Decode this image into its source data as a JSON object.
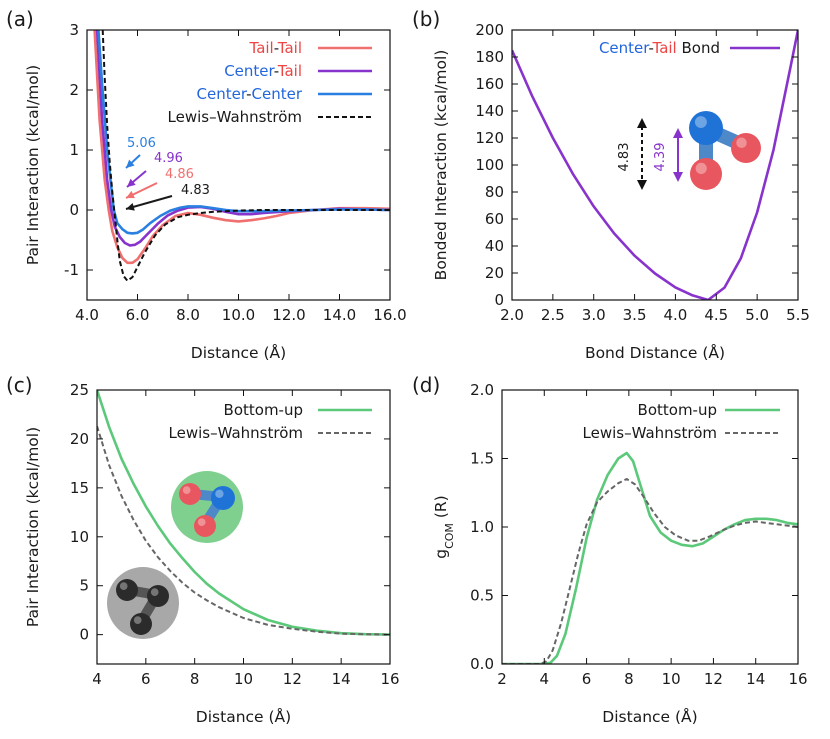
{
  "chart_data": [
    {
      "panel": "(a)",
      "type": "line",
      "xlabel": "Distance (Å)",
      "ylabel": "Pair Interaction (kcal/mol)",
      "xlim": [
        4.0,
        16.0
      ],
      "ylim": [
        -1.5,
        3.0
      ],
      "xticks": [
        4,
        6,
        8,
        10,
        12,
        14,
        16
      ],
      "xtick_labels": [
        "4.0",
        "6.0",
        "8.0",
        "10.0",
        "12.0",
        "14.0",
        "16.0"
      ],
      "yticks": [
        -1,
        0,
        1,
        2,
        3
      ],
      "ytick_labels": [
        "-1",
        "0",
        "1",
        "2",
        "3"
      ],
      "legend": [
        {
          "label_parts": [
            {
              "text": "Tail",
              "color": "#ee4444"
            },
            {
              "text": "-",
              "color": "#1a1a1a"
            },
            {
              "text": "Tail",
              "color": "#ee4444"
            }
          ],
          "color": "#f07070",
          "dash": "solid"
        },
        {
          "label_parts": [
            {
              "text": "Center",
              "color": "#2266dd"
            },
            {
              "text": "-",
              "color": "#1a1a1a"
            },
            {
              "text": "Tail",
              "color": "#ee4444"
            }
          ],
          "color": "#8833cc",
          "dash": "solid"
        },
        {
          "label_parts": [
            {
              "text": "Center",
              "color": "#2266dd"
            },
            {
              "text": "-",
              "color": "#1a1a1a"
            },
            {
              "text": "Center",
              "color": "#2266dd"
            }
          ],
          "color": "#2a80e0",
          "dash": "solid"
        },
        {
          "label_parts": [
            {
              "text": "Lewis–Wahnström",
              "color": "#1a1a1a"
            }
          ],
          "color": "#111111",
          "dash": "dashed"
        }
      ],
      "series": [
        {
          "name": "Tail-Tail",
          "color": "#f07070",
          "dash": "solid",
          "x": [
            4.3,
            4.5,
            4.7,
            4.86,
            5.0,
            5.2,
            5.4,
            5.6,
            5.8,
            6.0,
            6.3,
            6.6,
            7.0,
            7.5,
            8.0,
            8.5,
            9.0,
            9.5,
            10.0,
            10.5,
            11.0,
            11.5,
            12.0,
            13.0,
            14.0,
            15.0,
            16.0
          ],
          "y": [
            3.0,
            1.5,
            0.5,
            0.0,
            -0.35,
            -0.62,
            -0.8,
            -0.88,
            -0.88,
            -0.82,
            -0.64,
            -0.44,
            -0.25,
            -0.1,
            -0.05,
            -0.08,
            -0.13,
            -0.17,
            -0.19,
            -0.17,
            -0.14,
            -0.1,
            -0.05,
            0.0,
            0.03,
            0.03,
            0.02
          ]
        },
        {
          "name": "Center-Tail",
          "color": "#8833cc",
          "dash": "solid",
          "x": [
            4.4,
            4.6,
            4.8,
            4.96,
            5.1,
            5.3,
            5.5,
            5.7,
            5.9,
            6.1,
            6.4,
            6.8,
            7.2,
            7.6,
            8.0,
            8.5,
            9.0,
            9.5,
            10.0,
            10.5,
            11.0,
            12.0,
            13.0,
            14.0,
            15.0,
            16.0
          ],
          "y": [
            3.0,
            1.5,
            0.5,
            0.0,
            -0.28,
            -0.45,
            -0.55,
            -0.59,
            -0.58,
            -0.53,
            -0.4,
            -0.23,
            -0.09,
            -0.01,
            0.04,
            0.05,
            0.02,
            -0.03,
            -0.07,
            -0.07,
            -0.05,
            -0.02,
            0.0,
            0.02,
            0.01,
            0.0
          ]
        },
        {
          "name": "Center-Center",
          "color": "#2a80e0",
          "dash": "solid",
          "x": [
            4.45,
            4.6,
            4.8,
            5.06,
            5.2,
            5.4,
            5.6,
            5.8,
            6.0,
            6.2,
            6.5,
            6.9,
            7.3,
            7.7,
            8.0,
            8.5,
            9.0,
            9.5,
            10.0,
            11.0,
            12.0,
            13.0,
            14.0,
            15.0,
            16.0
          ],
          "y": [
            3.0,
            2.1,
            1.0,
            0.0,
            -0.22,
            -0.32,
            -0.38,
            -0.39,
            -0.38,
            -0.33,
            -0.22,
            -0.1,
            -0.01,
            0.04,
            0.06,
            0.06,
            0.03,
            0.0,
            -0.02,
            -0.02,
            -0.01,
            0.0,
            0.01,
            0.01,
            0.0
          ]
        },
        {
          "name": "Lewis–Wahnström",
          "color": "#111111",
          "dash": "dashed",
          "x": [
            4.62,
            4.7,
            4.8,
            4.9,
            5.0,
            5.1,
            5.2,
            5.3,
            5.45,
            5.6,
            5.8,
            6.0,
            6.3,
            6.7,
            7.1,
            7.6,
            8.0,
            8.5,
            9.0,
            10.0,
            11.0,
            12.0,
            14.0,
            16.0
          ],
          "y": [
            3.0,
            2.2,
            1.4,
            0.8,
            0.3,
            -0.1,
            -0.5,
            -0.85,
            -1.1,
            -1.18,
            -1.12,
            -0.95,
            -0.7,
            -0.42,
            -0.24,
            -0.12,
            -0.08,
            -0.05,
            -0.03,
            -0.01,
            0.0,
            0.0,
            0.0,
            0.0
          ]
        }
      ],
      "annotations": [
        {
          "text": "5.06",
          "color": "#2a80e0"
        },
        {
          "text": "4.96",
          "color": "#8833cc"
        },
        {
          "text": "4.86",
          "color": "#f07070"
        },
        {
          "text": "4.83",
          "color": "#1a1a1a"
        }
      ]
    },
    {
      "panel": "(b)",
      "type": "line",
      "xlabel": "Bond Distance (Å)",
      "ylabel": "Bonded Interaction (kcal/mol)",
      "xlim": [
        2.0,
        5.5
      ],
      "ylim": [
        0,
        200
      ],
      "xticks": [
        2.0,
        2.5,
        3.0,
        3.5,
        4.0,
        4.5,
        5.0,
        5.5
      ],
      "xtick_labels": [
        "2.0",
        "2.5",
        "3.0",
        "3.5",
        "4.0",
        "4.5",
        "5.0",
        "5.5"
      ],
      "yticks": [
        0,
        20,
        40,
        60,
        80,
        100,
        120,
        140,
        160,
        180,
        200
      ],
      "ytick_labels": [
        "0",
        "20",
        "40",
        "60",
        "80",
        "100",
        "120",
        "140",
        "160",
        "180",
        "200"
      ],
      "legend": [
        {
          "label_parts": [
            {
              "text": "Center",
              "color": "#2266dd"
            },
            {
              "text": "-",
              "color": "#1a1a1a"
            },
            {
              "text": "Tail",
              "color": "#ee4444"
            },
            {
              "text": " Bond",
              "color": "#1a1a1a"
            }
          ],
          "color": "#8833cc",
          "dash": "solid"
        }
      ],
      "series": [
        {
          "name": "Center-Tail Bond",
          "color": "#8833cc",
          "dash": "solid",
          "x": [
            2.0,
            2.25,
            2.5,
            2.75,
            3.0,
            3.25,
            3.5,
            3.75,
            4.0,
            4.2,
            4.4,
            4.6,
            4.8,
            5.0,
            5.2,
            5.4,
            5.5
          ],
          "y": [
            185.0,
            150.7,
            120.0,
            92.9,
            69.3,
            49.3,
            32.8,
            19.6,
            9.3,
            3.6,
            0.0,
            9.2,
            30.8,
            64.8,
            111.2,
            170.0,
            200.0
          ]
        }
      ],
      "annotations": [
        {
          "text": "4.83",
          "color": "#1a1a1a"
        },
        {
          "text": "4.39",
          "color": "#8833cc"
        }
      ]
    },
    {
      "panel": "(c)",
      "type": "line",
      "xlabel": "Distance (Å)",
      "ylabel": "Pair Interaction (kcal/mol)",
      "xlim": [
        4,
        16
      ],
      "ylim": [
        -3,
        25
      ],
      "xticks": [
        4,
        6,
        8,
        10,
        12,
        14,
        16
      ],
      "xtick_labels": [
        "4",
        "6",
        "8",
        "10",
        "12",
        "14",
        "16"
      ],
      "yticks": [
        0,
        5,
        10,
        15,
        20,
        25
      ],
      "ytick_labels": [
        "0",
        "5",
        "10",
        "15",
        "20",
        "25"
      ],
      "legend": [
        {
          "label_parts": [
            {
              "text": "Bottom-up",
              "color": "#1a1a1a"
            }
          ],
          "color": "#5cc87a",
          "dash": "solid"
        },
        {
          "label_parts": [
            {
              "text": "Lewis–Wahnström",
              "color": "#1a1a1a"
            }
          ],
          "color": "#666666",
          "dash": "dashed"
        }
      ],
      "series": [
        {
          "name": "Bottom-up",
          "color": "#5cc87a",
          "dash": "solid",
          "x": [
            4.0,
            4.5,
            5.0,
            5.5,
            6.0,
            6.5,
            7.0,
            7.5,
            8.0,
            8.5,
            9.0,
            10.0,
            11.0,
            12.0,
            13.0,
            14.0,
            15.0,
            16.0
          ],
          "y": [
            25.0,
            21.2,
            18.0,
            15.4,
            13.1,
            11.1,
            9.3,
            7.8,
            6.4,
            5.2,
            4.2,
            2.6,
            1.5,
            0.8,
            0.4,
            0.15,
            0.05,
            0.0
          ]
        },
        {
          "name": "Lewis–Wahnström",
          "color": "#666666",
          "dash": "dashed",
          "x": [
            4.0,
            4.5,
            5.0,
            5.5,
            6.0,
            6.5,
            7.0,
            7.5,
            8.0,
            8.5,
            9.0,
            10.0,
            11.0,
            12.0,
            13.0,
            14.0,
            15.0,
            16.0
          ],
          "y": [
            21.3,
            17.3,
            14.2,
            11.7,
            9.6,
            7.9,
            6.5,
            5.3,
            4.3,
            3.5,
            2.8,
            1.7,
            1.0,
            0.6,
            0.3,
            0.1,
            0.03,
            0.0
          ]
        }
      ]
    },
    {
      "panel": "(d)",
      "type": "line",
      "xlabel": "Distance (Å)",
      "ylabel_parts": [
        {
          "text": "g",
          "sub": false
        },
        {
          "text": "COM",
          "sub": true
        },
        {
          "text": " (R)",
          "sub": false
        }
      ],
      "xlim": [
        2,
        16
      ],
      "ylim": [
        0.0,
        2.0
      ],
      "xticks": [
        2,
        4,
        6,
        8,
        10,
        12,
        14,
        16
      ],
      "xtick_labels": [
        "2",
        "4",
        "6",
        "8",
        "10",
        "12",
        "14",
        "16"
      ],
      "yticks": [
        0.0,
        0.5,
        1.0,
        1.5,
        2.0
      ],
      "ytick_labels": [
        "0.0",
        "0.5",
        "1.0",
        "1.5",
        "2.0"
      ],
      "legend": [
        {
          "label_parts": [
            {
              "text": "Bottom-up",
              "color": "#1a1a1a"
            }
          ],
          "color": "#5cc87a",
          "dash": "solid"
        },
        {
          "label_parts": [
            {
              "text": "Lewis–Wahnström",
              "color": "#1a1a1a"
            }
          ],
          "color": "#666666",
          "dash": "dashed"
        }
      ],
      "series": [
        {
          "name": "Bottom-up",
          "color": "#5cc87a",
          "dash": "solid",
          "x": [
            2.0,
            4.0,
            4.3,
            4.6,
            5.0,
            5.5,
            6.0,
            6.5,
            7.0,
            7.5,
            7.9,
            8.2,
            8.5,
            9.0,
            9.5,
            10.0,
            10.5,
            11.0,
            11.5,
            12.0,
            12.5,
            13.0,
            13.5,
            14.0,
            14.5,
            15.0,
            15.5,
            16.0
          ],
          "y": [
            0.0,
            0.0,
            0.01,
            0.06,
            0.22,
            0.55,
            0.92,
            1.2,
            1.38,
            1.5,
            1.54,
            1.48,
            1.33,
            1.08,
            0.96,
            0.9,
            0.87,
            0.86,
            0.88,
            0.93,
            0.98,
            1.02,
            1.05,
            1.06,
            1.06,
            1.05,
            1.03,
            1.02
          ]
        },
        {
          "name": "Lewis–Wahnström",
          "color": "#666666",
          "dash": "dashed",
          "x": [
            2.0,
            3.8,
            4.1,
            4.4,
            4.8,
            5.2,
            5.6,
            6.0,
            6.5,
            7.0,
            7.5,
            7.9,
            8.3,
            8.7,
            9.2,
            9.7,
            10.2,
            10.8,
            11.3,
            11.8,
            12.5,
            13.0,
            13.5,
            14.0,
            14.5,
            15.0,
            15.5,
            16.0
          ],
          "y": [
            0.0,
            0.0,
            0.02,
            0.1,
            0.3,
            0.55,
            0.8,
            1.02,
            1.18,
            1.26,
            1.32,
            1.35,
            1.31,
            1.22,
            1.1,
            1.0,
            0.94,
            0.9,
            0.9,
            0.93,
            0.98,
            1.01,
            1.03,
            1.04,
            1.03,
            1.02,
            1.01,
            1.0
          ]
        }
      ]
    }
  ]
}
